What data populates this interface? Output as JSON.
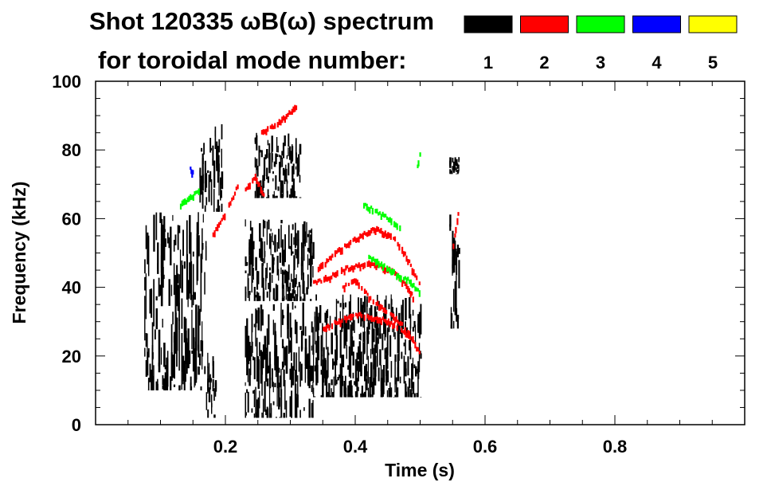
{
  "chart_data": {
    "type": "scatter",
    "title": {
      "line1": "Shot 120335 ωB(ω) spectrum",
      "line2": "for toroidal mode number:"
    },
    "xlabel": "Time (s)",
    "ylabel": "Frequency (kHz)",
    "xlim": [
      0.0,
      1.0
    ],
    "ylim": [
      0,
      100
    ],
    "xticks": [
      0.2,
      0.4,
      0.6,
      0.8
    ],
    "xtick_labels": [
      "0.2",
      "0.4",
      "0.6",
      "0.8"
    ],
    "yticks": [
      0,
      20,
      40,
      60,
      80,
      100
    ],
    "ytick_labels": [
      "0",
      "20",
      "40",
      "60",
      "80",
      "100"
    ],
    "legend": [
      {
        "label": "1",
        "color": "#000000"
      },
      {
        "label": "2",
        "color": "#ff0000"
      },
      {
        "label": "3",
        "color": "#00ff00"
      },
      {
        "label": "4",
        "color": "#0000ff"
      },
      {
        "label": "5",
        "color": "#ffff00"
      }
    ],
    "series": [
      {
        "name": "n=1",
        "color": "#000000",
        "regions": [
          {
            "t": [
              0.075,
              0.17
            ],
            "f": [
              10,
              62
            ]
          },
          {
            "t": [
              0.16,
              0.195
            ],
            "f": [
              62,
              88
            ]
          },
          {
            "t": [
              0.17,
              0.185
            ],
            "f": [
              2,
              22
            ]
          },
          {
            "t": [
              0.23,
              0.335
            ],
            "f": [
              2,
              36
            ]
          },
          {
            "t": [
              0.23,
              0.335
            ],
            "f": [
              36,
              60
            ]
          },
          {
            "t": [
              0.245,
              0.315
            ],
            "f": [
              66,
              85
            ]
          },
          {
            "t": [
              0.335,
              0.5
            ],
            "f": [
              8,
              38
            ]
          },
          {
            "t": [
              0.545,
              0.56
            ],
            "f": [
              28,
              62
            ]
          },
          {
            "t": [
              0.545,
              0.56
            ],
            "f": [
              73,
              78
            ]
          }
        ]
      },
      {
        "name": "n=2",
        "color": "#ff0000",
        "curves": [
          {
            "t": [
              0.18,
              0.2,
              0.22
            ],
            "f": [
              55,
              62,
              70
            ]
          },
          {
            "t": [
              0.255,
              0.275,
              0.295,
              0.31
            ],
            "f": [
              85,
              87,
              90,
              93
            ]
          },
          {
            "t": [
              0.23,
              0.245,
              0.26
            ],
            "f": [
              68,
              72,
              66
            ]
          },
          {
            "t": [
              0.335,
              0.36,
              0.38,
              0.4,
              0.42,
              0.44,
              0.46,
              0.48,
              0.49
            ],
            "f": [
              41,
              43,
              45,
              46,
              47,
              46,
              44,
              40,
              36
            ]
          },
          {
            "t": [
              0.34,
              0.37,
              0.4,
              0.43,
              0.46,
              0.48,
              0.5
            ],
            "f": [
              45,
              50,
              54,
              57,
              54,
              48,
              40
            ]
          },
          {
            "t": [
              0.38,
              0.4,
              0.42,
              0.44,
              0.46,
              0.48,
              0.5
            ],
            "f": [
              40,
              42,
              37,
              34,
              31,
              27,
              20
            ]
          },
          {
            "t": [
              0.35,
              0.4,
              0.45,
              0.49
            ],
            "f": [
              28,
              32,
              30,
              25
            ]
          },
          {
            "t": [
              0.55,
              0.555,
              0.56
            ],
            "f": [
              52,
              58,
              64
            ]
          }
        ]
      },
      {
        "name": "n=3",
        "color": "#00ff00",
        "curves": [
          {
            "t": [
              0.13,
              0.145,
              0.16
            ],
            "f": [
              64,
              66,
              68
            ]
          },
          {
            "t": [
              0.41,
              0.43,
              0.45,
              0.47
            ],
            "f": [
              64,
              62,
              60,
              57
            ]
          },
          {
            "t": [
              0.42,
              0.45,
              0.48,
              0.5
            ],
            "f": [
              49,
              45,
              42,
              38
            ]
          },
          {
            "t": [
              0.495,
              0.5
            ],
            "f": [
              75,
              80
            ]
          }
        ]
      },
      {
        "name": "n=4",
        "color": "#0000ff",
        "curves": [
          {
            "t": [
              0.145,
              0.15
            ],
            "f": [
              74,
              73
            ]
          }
        ]
      },
      {
        "name": "n=5",
        "color": "#ffff00",
        "curves": []
      }
    ]
  }
}
